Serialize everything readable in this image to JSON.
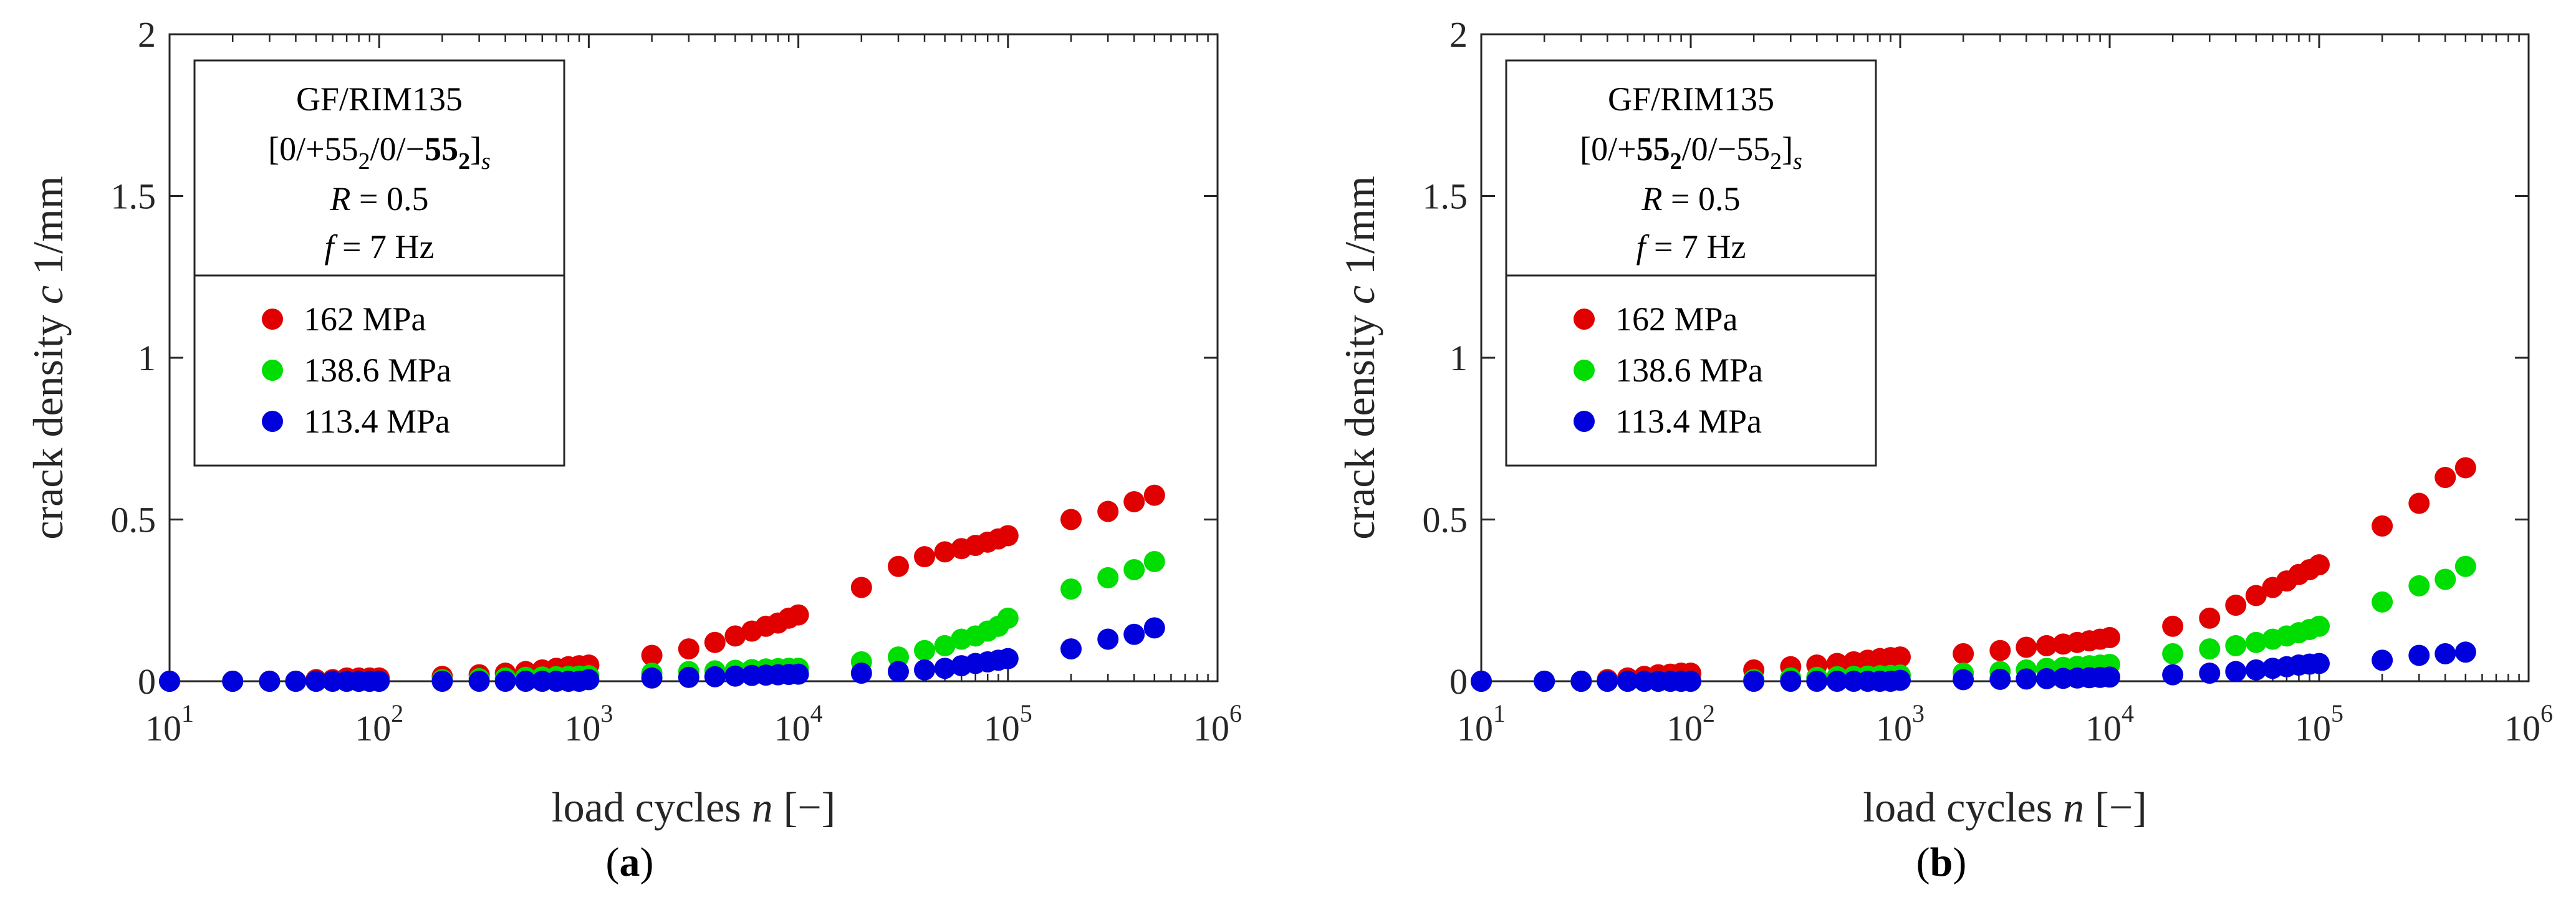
{
  "chart_data": [
    {
      "type": "scatter",
      "panel_label": "a",
      "xlabel": "load cycles",
      "xlabel_var": "n",
      "xlabel_unit": "[−]",
      "ylabel": "crack density",
      "ylabel_var": "c",
      "ylabel_unit": "1/mm",
      "xscale": "log",
      "xlim": [
        10,
        1000000
      ],
      "ylim": [
        0,
        2
      ],
      "xticks": [
        10,
        100,
        1000,
        10000,
        100000,
        1000000
      ],
      "xtick_labels": [
        "10",
        "10",
        "10",
        "10",
        "10",
        "10"
      ],
      "xtick_exponents": [
        "1",
        "2",
        "3",
        "4",
        "5",
        "6"
      ],
      "yticks": [
        0,
        0.5,
        1,
        1.5,
        2
      ],
      "ytick_labels": [
        "0",
        "0.5",
        "1",
        "1.5",
        "2"
      ],
      "grid": false,
      "legend_position": "top-left",
      "legend_header": {
        "material": "GF/RIM135",
        "layup_open": "[0/+",
        "layup_a": "55",
        "layup_a_sub": "2",
        "layup_mid": "/0/−",
        "layup_b": "55",
        "layup_b_sub": "2",
        "layup_close": "]",
        "layup_sub": "s",
        "bold_group": "b",
        "ratio_var": "R",
        "ratio_val": "= 0.5",
        "freq_var": "f",
        "freq_val": "= 7 Hz"
      },
      "series": [
        {
          "name": "162 MPa",
          "color": "#e00000",
          "x": [
            10,
            20,
            30,
            40,
            50,
            60,
            70,
            80,
            90,
            100,
            200,
            300,
            400,
            500,
            600,
            700,
            800,
            900,
            1000,
            2000,
            3000,
            4000,
            5000,
            6000,
            7000,
            8000,
            9000,
            10000,
            20000,
            30000,
            40000,
            50000,
            60000,
            70000,
            80000,
            90000,
            100000,
            200000,
            300000,
            400000,
            500000
          ],
          "y": [
            0,
            0,
            0,
            0,
            0.005,
            0.005,
            0.01,
            0.01,
            0.01,
            0.01,
            0.015,
            0.02,
            0.025,
            0.03,
            0.035,
            0.04,
            0.045,
            0.048,
            0.05,
            0.08,
            0.1,
            0.12,
            0.14,
            0.155,
            0.17,
            0.18,
            0.195,
            0.205,
            0.29,
            0.355,
            0.385,
            0.4,
            0.41,
            0.42,
            0.43,
            0.44,
            0.45,
            0.5,
            0.525,
            0.555,
            0.575
          ]
        },
        {
          "name": "138.6 MPa",
          "color": "#00dd00",
          "x": [
            10,
            20,
            30,
            40,
            50,
            60,
            70,
            80,
            90,
            100,
            200,
            300,
            400,
            500,
            600,
            700,
            800,
            900,
            1000,
            2000,
            3000,
            4000,
            5000,
            6000,
            7000,
            8000,
            9000,
            10000,
            20000,
            30000,
            40000,
            50000,
            60000,
            70000,
            80000,
            90000,
            100000,
            200000,
            300000,
            400000,
            500000
          ],
          "y": [
            0,
            0,
            0,
            0,
            0,
            0,
            0,
            0,
            0,
            0,
            0.005,
            0.008,
            0.01,
            0.012,
            0.013,
            0.014,
            0.015,
            0.016,
            0.017,
            0.025,
            0.03,
            0.032,
            0.034,
            0.036,
            0.038,
            0.039,
            0.04,
            0.04,
            0.06,
            0.075,
            0.095,
            0.11,
            0.13,
            0.14,
            0.155,
            0.17,
            0.195,
            0.285,
            0.32,
            0.345,
            0.37
          ]
        },
        {
          "name": "113.4 MPa",
          "color": "#0000dd",
          "x": [
            10,
            20,
            30,
            40,
            50,
            60,
            70,
            80,
            90,
            100,
            200,
            300,
            400,
            500,
            600,
            700,
            800,
            900,
            1000,
            2000,
            3000,
            4000,
            5000,
            6000,
            7000,
            8000,
            9000,
            10000,
            20000,
            30000,
            40000,
            50000,
            60000,
            70000,
            80000,
            90000,
            100000,
            200000,
            300000,
            400000,
            500000
          ],
          "y": [
            0,
            0,
            0,
            0,
            0,
            0,
            0,
            0,
            0,
            0,
            0,
            0,
            0,
            0,
            0,
            0,
            0,
            0,
            0.005,
            0.01,
            0.012,
            0.014,
            0.016,
            0.018,
            0.019,
            0.02,
            0.021,
            0.022,
            0.025,
            0.03,
            0.035,
            0.04,
            0.048,
            0.055,
            0.06,
            0.065,
            0.07,
            0.1,
            0.13,
            0.145,
            0.165
          ]
        }
      ]
    },
    {
      "type": "scatter",
      "panel_label": "b",
      "xlabel": "load cycles",
      "xlabel_var": "n",
      "xlabel_unit": "[−]",
      "ylabel": "crack density",
      "ylabel_var": "c",
      "ylabel_unit": "1/mm",
      "xscale": "log",
      "xlim": [
        10,
        1000000
      ],
      "ylim": [
        0,
        2
      ],
      "xticks": [
        10,
        100,
        1000,
        10000,
        100000,
        1000000
      ],
      "xtick_labels": [
        "10",
        "10",
        "10",
        "10",
        "10",
        "10"
      ],
      "xtick_exponents": [
        "1",
        "2",
        "3",
        "4",
        "5",
        "6"
      ],
      "yticks": [
        0,
        0.5,
        1,
        1.5,
        2
      ],
      "ytick_labels": [
        "0",
        "0.5",
        "1",
        "1.5",
        "2"
      ],
      "grid": false,
      "legend_position": "top-left",
      "legend_header": {
        "material": "GF/RIM135",
        "layup_open": "[0/+",
        "layup_a": "55",
        "layup_a_sub": "2",
        "layup_mid": "/0/−",
        "layup_b": "55",
        "layup_b_sub": "2",
        "layup_close": "]",
        "layup_sub": "s",
        "bold_group": "a",
        "ratio_var": "R",
        "ratio_val": "= 0.5",
        "freq_var": "f",
        "freq_val": "= 7 Hz"
      },
      "series": [
        {
          "name": "162 MPa",
          "color": "#e00000",
          "x": [
            10,
            20,
            30,
            40,
            50,
            60,
            70,
            80,
            90,
            100,
            200,
            300,
            400,
            500,
            600,
            700,
            800,
            900,
            1000,
            2000,
            3000,
            4000,
            5000,
            6000,
            7000,
            8000,
            9000,
            10000,
            20000,
            30000,
            40000,
            50000,
            60000,
            70000,
            80000,
            90000,
            100000,
            200000,
            300000,
            400000,
            500000
          ],
          "y": [
            0,
            0,
            0,
            0.005,
            0.01,
            0.015,
            0.02,
            0.022,
            0.025,
            0.025,
            0.035,
            0.045,
            0.05,
            0.055,
            0.06,
            0.065,
            0.07,
            0.073,
            0.075,
            0.085,
            0.095,
            0.105,
            0.11,
            0.115,
            0.12,
            0.125,
            0.13,
            0.135,
            0.17,
            0.195,
            0.235,
            0.265,
            0.29,
            0.31,
            0.33,
            0.345,
            0.36,
            0.48,
            0.55,
            0.63,
            0.66
          ]
        },
        {
          "name": "138.6 MPa",
          "color": "#00dd00",
          "x": [
            10,
            20,
            30,
            40,
            50,
            60,
            70,
            80,
            90,
            100,
            200,
            300,
            400,
            500,
            600,
            700,
            800,
            900,
            1000,
            2000,
            3000,
            4000,
            5000,
            6000,
            7000,
            8000,
            9000,
            10000,
            20000,
            30000,
            40000,
            50000,
            60000,
            70000,
            80000,
            90000,
            100000,
            200000,
            300000,
            400000,
            500000
          ],
          "y": [
            0,
            0,
            0,
            0,
            0,
            0,
            0,
            0,
            0,
            0,
            0.005,
            0.01,
            0.012,
            0.014,
            0.015,
            0.016,
            0.017,
            0.018,
            0.019,
            0.025,
            0.03,
            0.035,
            0.04,
            0.043,
            0.046,
            0.048,
            0.05,
            0.052,
            0.085,
            0.1,
            0.11,
            0.12,
            0.13,
            0.14,
            0.15,
            0.16,
            0.17,
            0.245,
            0.295,
            0.315,
            0.355
          ]
        },
        {
          "name": "113.4 MPa",
          "color": "#0000dd",
          "x": [
            10,
            20,
            30,
            40,
            50,
            60,
            70,
            80,
            90,
            100,
            200,
            300,
            400,
            500,
            600,
            700,
            800,
            900,
            1000,
            2000,
            3000,
            4000,
            5000,
            6000,
            7000,
            8000,
            9000,
            10000,
            20000,
            30000,
            40000,
            50000,
            60000,
            70000,
            80000,
            90000,
            100000,
            200000,
            300000,
            400000,
            500000
          ],
          "y": [
            0,
            0,
            0,
            0,
            0,
            0,
            0,
            0,
            0,
            0,
            0,
            0,
            0,
            0,
            0,
            0,
            0,
            0,
            0.003,
            0.005,
            0.006,
            0.007,
            0.008,
            0.009,
            0.01,
            0.011,
            0.012,
            0.013,
            0.02,
            0.025,
            0.03,
            0.035,
            0.04,
            0.045,
            0.05,
            0.053,
            0.055,
            0.065,
            0.08,
            0.085,
            0.09
          ]
        }
      ]
    }
  ]
}
